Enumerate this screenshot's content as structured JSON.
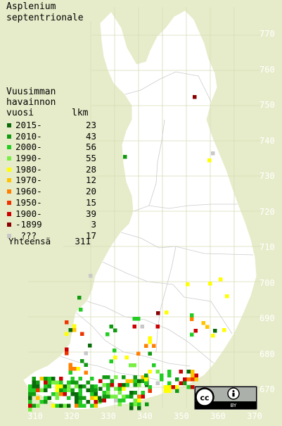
{
  "title": [
    "Asplenium",
    "septentrionale"
  ],
  "legend_title": [
    "Vuusimman",
    "havainnon"
  ],
  "legend_header": {
    "year": "vuosi",
    "count": "lkm"
  },
  "legend": [
    {
      "label": "2015-",
      "count": "23",
      "color": "#0a6a0a"
    },
    {
      "label": "2010-",
      "count": "43",
      "color": "#119911"
    },
    {
      "label": "2000-",
      "count": "56",
      "color": "#22cc22"
    },
    {
      "label": "1990-",
      "count": "55",
      "color": "#77ee44"
    },
    {
      "label": "1980-",
      "count": "28",
      "color": "#ffff00"
    },
    {
      "label": "1970-",
      "count": "12",
      "color": "#ffc400"
    },
    {
      "label": "1960-",
      "count": "20",
      "color": "#ff8000"
    },
    {
      "label": "1950-",
      "count": "15",
      "color": "#ee3300"
    },
    {
      "label": "1900-",
      "count": "39",
      "color": "#cc0000"
    },
    {
      "label": "-1899",
      "count": "3",
      "color": "#880000"
    },
    {
      "label": " ???",
      "count": "17",
      "color": "#c8c8c8"
    }
  ],
  "total": {
    "label": "Yhteensä",
    "count": "311"
  },
  "y_ticks": [
    "770",
    "760",
    "750",
    "740",
    "730",
    "720",
    "710",
    "700",
    "690",
    "680",
    "670"
  ],
  "x_ticks": [
    "310",
    "320",
    "330",
    "340",
    "350",
    "360",
    "370"
  ],
  "license": {
    "cc": "cc",
    "by": "BY"
  },
  "colors": {
    "background": "#e6ecc9",
    "land": "#ffffff",
    "grid": "#d6dcb6"
  }
}
